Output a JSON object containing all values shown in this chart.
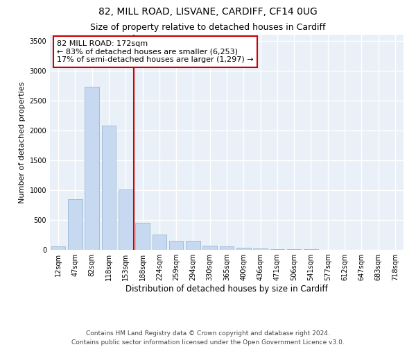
{
  "title1": "82, MILL ROAD, LISVANE, CARDIFF, CF14 0UG",
  "title2": "Size of property relative to detached houses in Cardiff",
  "xlabel": "Distribution of detached houses by size in Cardiff",
  "ylabel": "Number of detached properties",
  "categories": [
    "12sqm",
    "47sqm",
    "82sqm",
    "118sqm",
    "153sqm",
    "188sqm",
    "224sqm",
    "259sqm",
    "294sqm",
    "330sqm",
    "365sqm",
    "400sqm",
    "436sqm",
    "471sqm",
    "506sqm",
    "541sqm",
    "577sqm",
    "612sqm",
    "647sqm",
    "683sqm",
    "718sqm"
  ],
  "values": [
    60,
    850,
    2730,
    2080,
    1010,
    450,
    250,
    155,
    155,
    75,
    55,
    30,
    20,
    15,
    10,
    8,
    5,
    3,
    2,
    2,
    2
  ],
  "bar_color": "#c6d9f0",
  "bar_edge_color": "#9ab8d4",
  "vline_x": 4.5,
  "vline_color": "#cc0000",
  "annotation_text": "82 MILL ROAD: 172sqm\n← 83% of detached houses are smaller (6,253)\n17% of semi-detached houses are larger (1,297) →",
  "annotation_box_color": "#cc0000",
  "ylim": [
    0,
    3600
  ],
  "yticks": [
    0,
    500,
    1000,
    1500,
    2000,
    2500,
    3000,
    3500
  ],
  "footer": "Contains HM Land Registry data © Crown copyright and database right 2024.\nContains public sector information licensed under the Open Government Licence v3.0.",
  "bg_color": "#eaf0f8",
  "grid_color": "#ffffff",
  "title1_fontsize": 10,
  "title2_fontsize": 9,
  "xlabel_fontsize": 8.5,
  "ylabel_fontsize": 8,
  "tick_fontsize": 7,
  "annotation_fontsize": 8,
  "footer_fontsize": 6.5
}
